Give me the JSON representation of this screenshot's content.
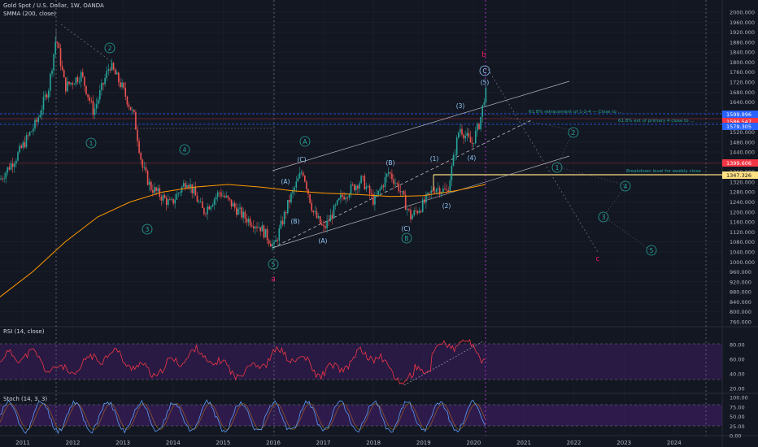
{
  "header": {
    "title": "Gold Spot / U.S. Dollar, 1W, OANDA",
    "indicator": "SMMA (200, close)"
  },
  "rsi_panel": {
    "label": "RSI (14, close)",
    "ticks": [
      "80.00",
      "60.00",
      "40.00",
      "20.00"
    ]
  },
  "stoch_panel": {
    "label": "Stoch (14, 3, 3)",
    "ticks": [
      "100.00",
      "75.00",
      "50.00",
      "25.00",
      "0.00"
    ]
  },
  "price_axis": {
    "ticks": [
      "2000.000",
      "1960.000",
      "1920.000",
      "1880.000",
      "1840.000",
      "1800.000",
      "1760.000",
      "1720.000",
      "1680.000",
      "1640.000",
      "1600.000",
      "1560.000",
      "1520.000",
      "1480.000",
      "1440.000",
      "1400.000",
      "1360.000",
      "1320.000",
      "1280.000",
      "1240.000",
      "1200.000",
      "1160.000",
      "1120.000",
      "1080.000",
      "1040.000",
      "1000.000",
      "960.000",
      "920.000",
      "880.000",
      "840.000",
      "800.000",
      "760.000"
    ],
    "badges": [
      {
        "text": "1599.996",
        "color": "#2962ff"
      },
      {
        "text": "1586.547",
        "color": "#f23645"
      },
      {
        "text": "1579.305",
        "color": "#2962ff"
      },
      {
        "text": "1399.606",
        "color": "#f23645"
      },
      {
        "text": "1347.326",
        "color": "#ffe082"
      }
    ]
  },
  "time_axis": [
    "2011",
    "2012",
    "2013",
    "2014",
    "2015",
    "2016",
    "2017",
    "2018",
    "2019",
    "2020",
    "2021",
    "2022",
    "2023",
    "2024"
  ],
  "wave_labels": {
    "circle_green": [
      "2",
      "1",
      "4",
      "3",
      "A",
      "2",
      "1",
      "4",
      "3",
      "5",
      "5",
      "B"
    ],
    "circle_blue": [
      "A",
      "C"
    ],
    "paren_blue": [
      "(A)",
      "(C)",
      "(B)",
      "(A)",
      "(B)",
      "(C)",
      "(1)",
      "(2)",
      "(3)",
      "(4)",
      "(5)"
    ],
    "pink": [
      "a",
      "b",
      "c"
    ]
  },
  "annotations": {
    "fib_a": "61.8% retracement of 1-2-4 — Close to ...",
    "fib_b": "61.8% ext of primary 4 close to ...",
    "key_level": "Breakdown level for weekly close"
  },
  "colors": {
    "background": "#131722",
    "up_candle": "#26a69a",
    "down_candle": "#ef5350",
    "smma": "#ff9800",
    "rsi": "#f23645",
    "stoch_k": "#5b9cf6",
    "panel_fill": "#3a1e5e",
    "accent_blue": "#2962ff"
  },
  "icons": {
    "marker": "diamond-icon"
  }
}
